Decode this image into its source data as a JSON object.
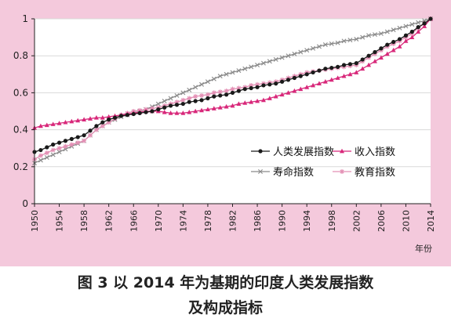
{
  "figure": {
    "caption_line1": "图 3   以 2014 年为基期的印度人类发展指数",
    "caption_line2": "及构成指标"
  },
  "colors": {
    "panel_bg": "#f4c9dc",
    "plot_bg": "#ffffff"
  },
  "chart_data": {
    "type": "line",
    "xlabel": "年份",
    "ylabel": "",
    "title": "",
    "x": [
      1950,
      1951,
      1952,
      1953,
      1954,
      1955,
      1956,
      1957,
      1958,
      1959,
      1960,
      1961,
      1962,
      1963,
      1964,
      1965,
      1966,
      1967,
      1968,
      1969,
      1970,
      1971,
      1972,
      1973,
      1974,
      1975,
      1976,
      1977,
      1978,
      1979,
      1980,
      1981,
      1982,
      1983,
      1984,
      1985,
      1986,
      1987,
      1988,
      1989,
      1990,
      1991,
      1992,
      1993,
      1994,
      1995,
      1996,
      1997,
      1998,
      1999,
      2000,
      2001,
      2002,
      2003,
      2004,
      2005,
      2006,
      2007,
      2008,
      2009,
      2010,
      2011,
      2012,
      2013,
      2014
    ],
    "xticks": [
      "1950",
      "1954",
      "1958",
      "1962",
      "1966",
      "1970",
      "1974",
      "1978",
      "1982",
      "1986",
      "1990",
      "1994",
      "1998",
      "2002",
      "2006",
      "2010",
      "2014"
    ],
    "ylim": [
      0,
      1
    ],
    "yticks": [
      "0",
      "0.2",
      "0.4",
      "0.6",
      "0.8",
      "1"
    ],
    "legend": {
      "position": "right",
      "columns": 2
    },
    "series": [
      {
        "name": "人类发展指数",
        "color": "#1a1a1a",
        "marker": "dot",
        "values": [
          0.28,
          0.29,
          0.305,
          0.32,
          0.33,
          0.34,
          0.35,
          0.36,
          0.37,
          0.395,
          0.42,
          0.44,
          0.455,
          0.465,
          0.475,
          0.48,
          0.485,
          0.49,
          0.495,
          0.5,
          0.51,
          0.52,
          0.53,
          0.535,
          0.54,
          0.55,
          0.555,
          0.56,
          0.57,
          0.58,
          0.585,
          0.59,
          0.6,
          0.61,
          0.62,
          0.625,
          0.63,
          0.64,
          0.645,
          0.65,
          0.66,
          0.67,
          0.68,
          0.69,
          0.7,
          0.71,
          0.72,
          0.73,
          0.735,
          0.74,
          0.75,
          0.755,
          0.76,
          0.78,
          0.8,
          0.82,
          0.84,
          0.86,
          0.875,
          0.89,
          0.91,
          0.93,
          0.955,
          0.975,
          1.0
        ]
      },
      {
        "name": "收入指数",
        "color": "#d8287a",
        "marker": "triangle",
        "values": [
          0.41,
          0.42,
          0.425,
          0.43,
          0.435,
          0.44,
          0.445,
          0.45,
          0.455,
          0.46,
          0.465,
          0.465,
          0.47,
          0.475,
          0.48,
          0.485,
          0.49,
          0.495,
          0.5,
          0.5,
          0.5,
          0.495,
          0.49,
          0.49,
          0.49,
          0.495,
          0.5,
          0.505,
          0.51,
          0.515,
          0.52,
          0.525,
          0.53,
          0.54,
          0.545,
          0.55,
          0.555,
          0.56,
          0.57,
          0.58,
          0.59,
          0.6,
          0.61,
          0.62,
          0.63,
          0.64,
          0.65,
          0.66,
          0.67,
          0.68,
          0.69,
          0.7,
          0.71,
          0.73,
          0.75,
          0.77,
          0.79,
          0.81,
          0.83,
          0.85,
          0.88,
          0.9,
          0.93,
          0.96,
          1.0
        ]
      },
      {
        "name": "寿命指数",
        "color": "#8a8a8a",
        "marker": "x",
        "values": [
          0.22,
          0.235,
          0.25,
          0.265,
          0.28,
          0.295,
          0.31,
          0.325,
          0.34,
          0.37,
          0.4,
          0.42,
          0.44,
          0.455,
          0.47,
          0.48,
          0.49,
          0.5,
          0.51,
          0.525,
          0.54,
          0.555,
          0.57,
          0.585,
          0.6,
          0.615,
          0.63,
          0.645,
          0.66,
          0.675,
          0.69,
          0.7,
          0.71,
          0.72,
          0.73,
          0.74,
          0.75,
          0.76,
          0.77,
          0.78,
          0.79,
          0.8,
          0.81,
          0.82,
          0.83,
          0.84,
          0.85,
          0.86,
          0.865,
          0.87,
          0.88,
          0.885,
          0.89,
          0.9,
          0.91,
          0.915,
          0.92,
          0.93,
          0.94,
          0.95,
          0.96,
          0.97,
          0.98,
          0.99,
          1.0
        ]
      },
      {
        "name": "教育指数",
        "color": "#e38fb4",
        "marker": "star",
        "values": [
          0.24,
          0.26,
          0.275,
          0.29,
          0.3,
          0.31,
          0.32,
          0.33,
          0.34,
          0.37,
          0.4,
          0.42,
          0.44,
          0.46,
          0.48,
          0.49,
          0.5,
          0.505,
          0.51,
          0.515,
          0.52,
          0.53,
          0.54,
          0.55,
          0.56,
          0.57,
          0.58,
          0.585,
          0.59,
          0.6,
          0.605,
          0.61,
          0.62,
          0.625,
          0.63,
          0.64,
          0.645,
          0.65,
          0.655,
          0.66,
          0.67,
          0.68,
          0.69,
          0.7,
          0.71,
          0.715,
          0.72,
          0.725,
          0.73,
          0.735,
          0.74,
          0.745,
          0.75,
          0.77,
          0.79,
          0.81,
          0.83,
          0.85,
          0.865,
          0.88,
          0.9,
          0.92,
          0.95,
          0.975,
          1.0
        ]
      }
    ]
  }
}
